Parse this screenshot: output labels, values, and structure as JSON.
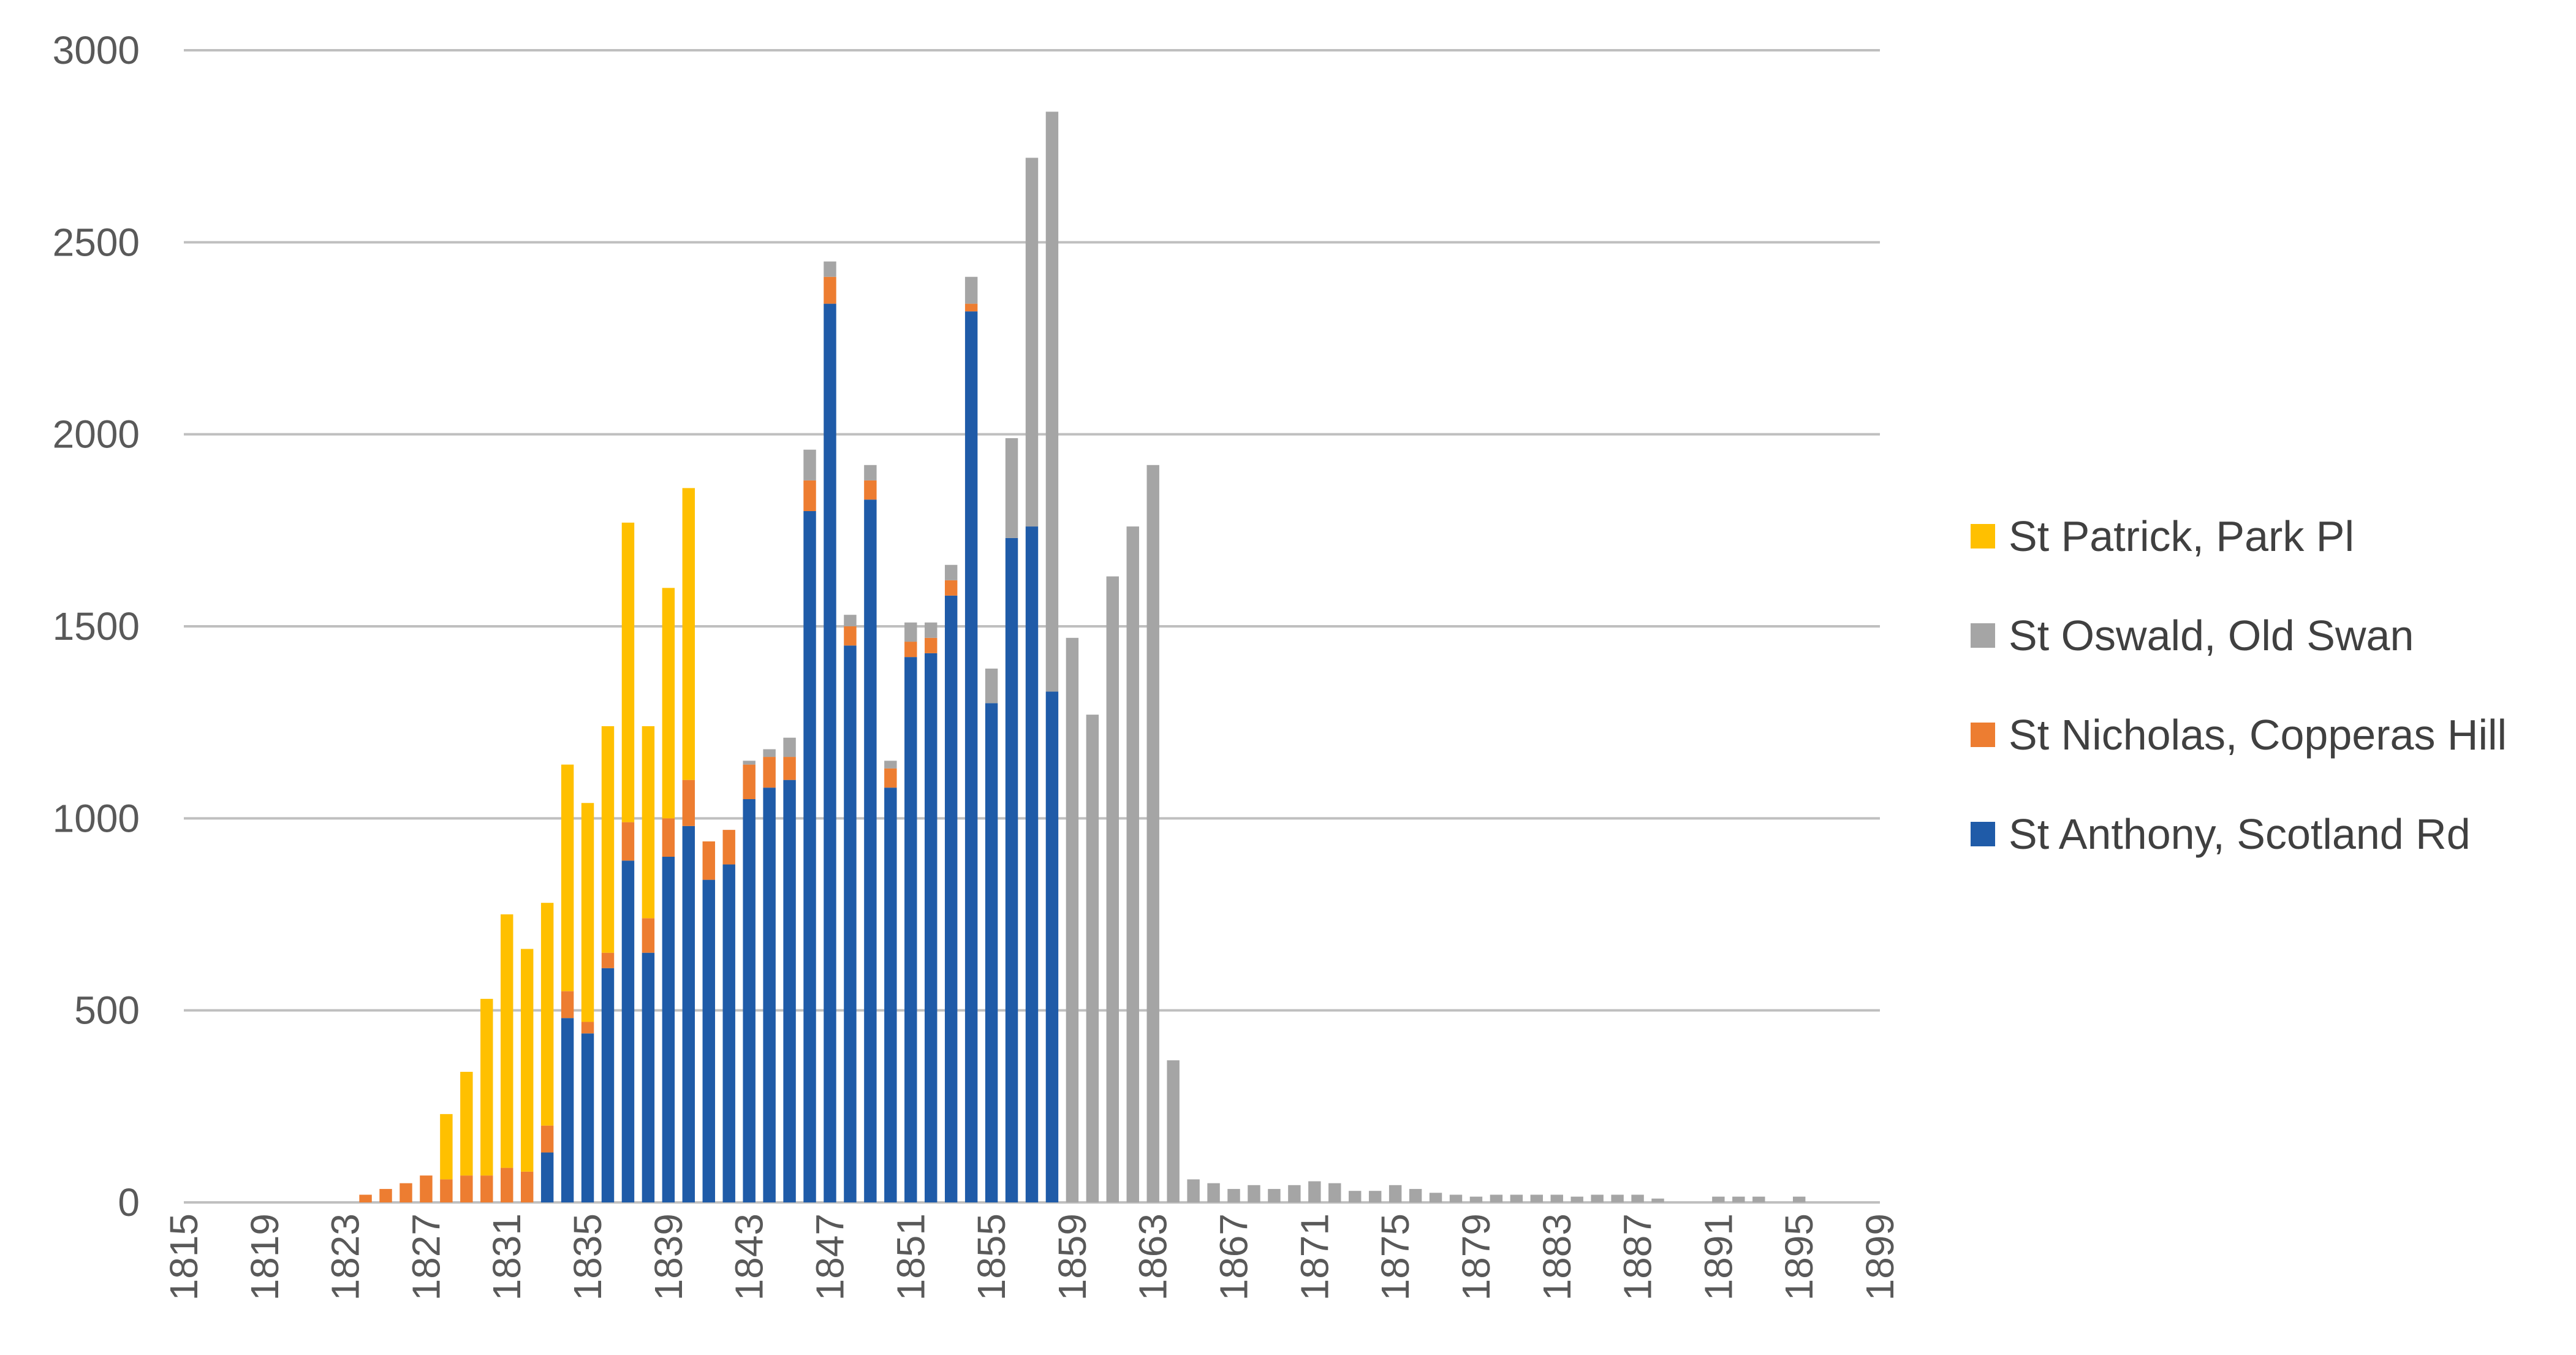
{
  "chart_data": {
    "type": "bar",
    "stacked": true,
    "title": "",
    "xlabel": "",
    "ylabel": "",
    "ylim": [
      0,
      3000
    ],
    "yticks": [
      0,
      500,
      1000,
      1500,
      2000,
      2500,
      3000
    ],
    "grid": "horizontal",
    "legend_position": "right",
    "x": [
      1815,
      1816,
      1817,
      1818,
      1819,
      1820,
      1821,
      1822,
      1823,
      1824,
      1825,
      1826,
      1827,
      1828,
      1829,
      1830,
      1831,
      1832,
      1833,
      1834,
      1835,
      1836,
      1837,
      1838,
      1839,
      1840,
      1841,
      1842,
      1843,
      1844,
      1845,
      1846,
      1847,
      1848,
      1849,
      1850,
      1851,
      1852,
      1853,
      1854,
      1855,
      1856,
      1857,
      1858,
      1859,
      1860,
      1861,
      1862,
      1863,
      1864,
      1865,
      1866,
      1867,
      1868,
      1869,
      1870,
      1871,
      1872,
      1873,
      1874,
      1875,
      1876,
      1877,
      1878,
      1879,
      1880,
      1881,
      1882,
      1883,
      1884,
      1885,
      1886,
      1887,
      1888,
      1889,
      1890,
      1891,
      1892,
      1893,
      1894,
      1895,
      1896,
      1897,
      1898,
      1899
    ],
    "x_tick_labels": [
      "1815",
      "1819",
      "1823",
      "1827",
      "1831",
      "1835",
      "1839",
      "1843",
      "1847",
      "1851",
      "1855",
      "1859",
      "1863",
      "1867",
      "1871",
      "1875",
      "1879",
      "1883",
      "1887",
      "1891",
      "1895",
      "1899"
    ],
    "series": [
      {
        "name": "St Anthony, Scotland Rd",
        "color": "#1f5ba8",
        "values": [
          0,
          0,
          0,
          0,
          0,
          0,
          0,
          0,
          0,
          0,
          0,
          0,
          0,
          0,
          0,
          0,
          0,
          0,
          130,
          480,
          440,
          610,
          890,
          650,
          900,
          980,
          840,
          880,
          1050,
          1080,
          1100,
          1800,
          2340,
          1450,
          1830,
          1080,
          1420,
          1430,
          1580,
          2320,
          1300,
          1730,
          1760,
          1330,
          0,
          0,
          0,
          0,
          0,
          0,
          0,
          0,
          0,
          0,
          0,
          0,
          0,
          0,
          0,
          0,
          0,
          0,
          0,
          0,
          0,
          0,
          0,
          0,
          0,
          0,
          0,
          0,
          0,
          0,
          0,
          0,
          0,
          0,
          0,
          0,
          0,
          0,
          0,
          0,
          0
        ]
      },
      {
        "name": "St Nicholas, Copperas Hill",
        "color": "#ed7d31",
        "values": [
          0,
          0,
          0,
          0,
          0,
          0,
          0,
          0,
          0,
          20,
          35,
          50,
          70,
          60,
          70,
          70,
          90,
          80,
          70,
          70,
          30,
          40,
          100,
          90,
          100,
          120,
          100,
          90,
          90,
          80,
          60,
          80,
          70,
          50,
          50,
          50,
          40,
          40,
          40,
          20,
          0,
          0,
          0,
          0,
          0,
          0,
          0,
          0,
          0,
          0,
          0,
          0,
          0,
          0,
          0,
          0,
          0,
          0,
          0,
          0,
          0,
          0,
          0,
          0,
          0,
          0,
          0,
          0,
          0,
          0,
          0,
          0,
          0,
          0,
          0,
          0,
          0,
          0,
          0,
          0,
          0,
          0,
          0,
          0,
          0
        ]
      },
      {
        "name": "St Oswald, Old Swan",
        "color": "#a5a5a5",
        "values": [
          0,
          0,
          0,
          0,
          0,
          0,
          0,
          0,
          0,
          0,
          0,
          0,
          0,
          0,
          0,
          0,
          0,
          0,
          0,
          0,
          0,
          0,
          0,
          0,
          0,
          0,
          0,
          0,
          10,
          20,
          50,
          80,
          40,
          30,
          40,
          20,
          50,
          40,
          40,
          70,
          90,
          260,
          960,
          1510,
          1470,
          1270,
          1630,
          1760,
          1920,
          370,
          60,
          50,
          35,
          45,
          35,
          45,
          55,
          50,
          30,
          30,
          45,
          35,
          25,
          20,
          15,
          20,
          20,
          20,
          20,
          15,
          20,
          20,
          20,
          10,
          0,
          0,
          15,
          15,
          15,
          0,
          15,
          0,
          0,
          0,
          0
        ]
      },
      {
        "name": "St Patrick, Park Pl",
        "color": "#ffc000",
        "values": [
          0,
          0,
          0,
          0,
          0,
          0,
          0,
          0,
          0,
          0,
          0,
          0,
          0,
          170,
          270,
          460,
          660,
          580,
          580,
          590,
          570,
          590,
          780,
          500,
          600,
          760,
          0,
          0,
          0,
          0,
          0,
          0,
          0,
          0,
          0,
          0,
          0,
          0,
          0,
          0,
          0,
          0,
          0,
          0,
          0,
          0,
          0,
          0,
          0,
          0,
          0,
          0,
          0,
          0,
          0,
          0,
          0,
          0,
          0,
          0,
          0,
          0,
          0,
          0,
          0,
          0,
          0,
          0,
          0,
          0,
          0,
          0,
          0,
          0,
          0,
          0,
          0,
          0,
          0,
          0,
          0,
          0,
          0,
          0,
          0
        ]
      }
    ],
    "legend_order": [
      3,
      2,
      1,
      0
    ]
  }
}
